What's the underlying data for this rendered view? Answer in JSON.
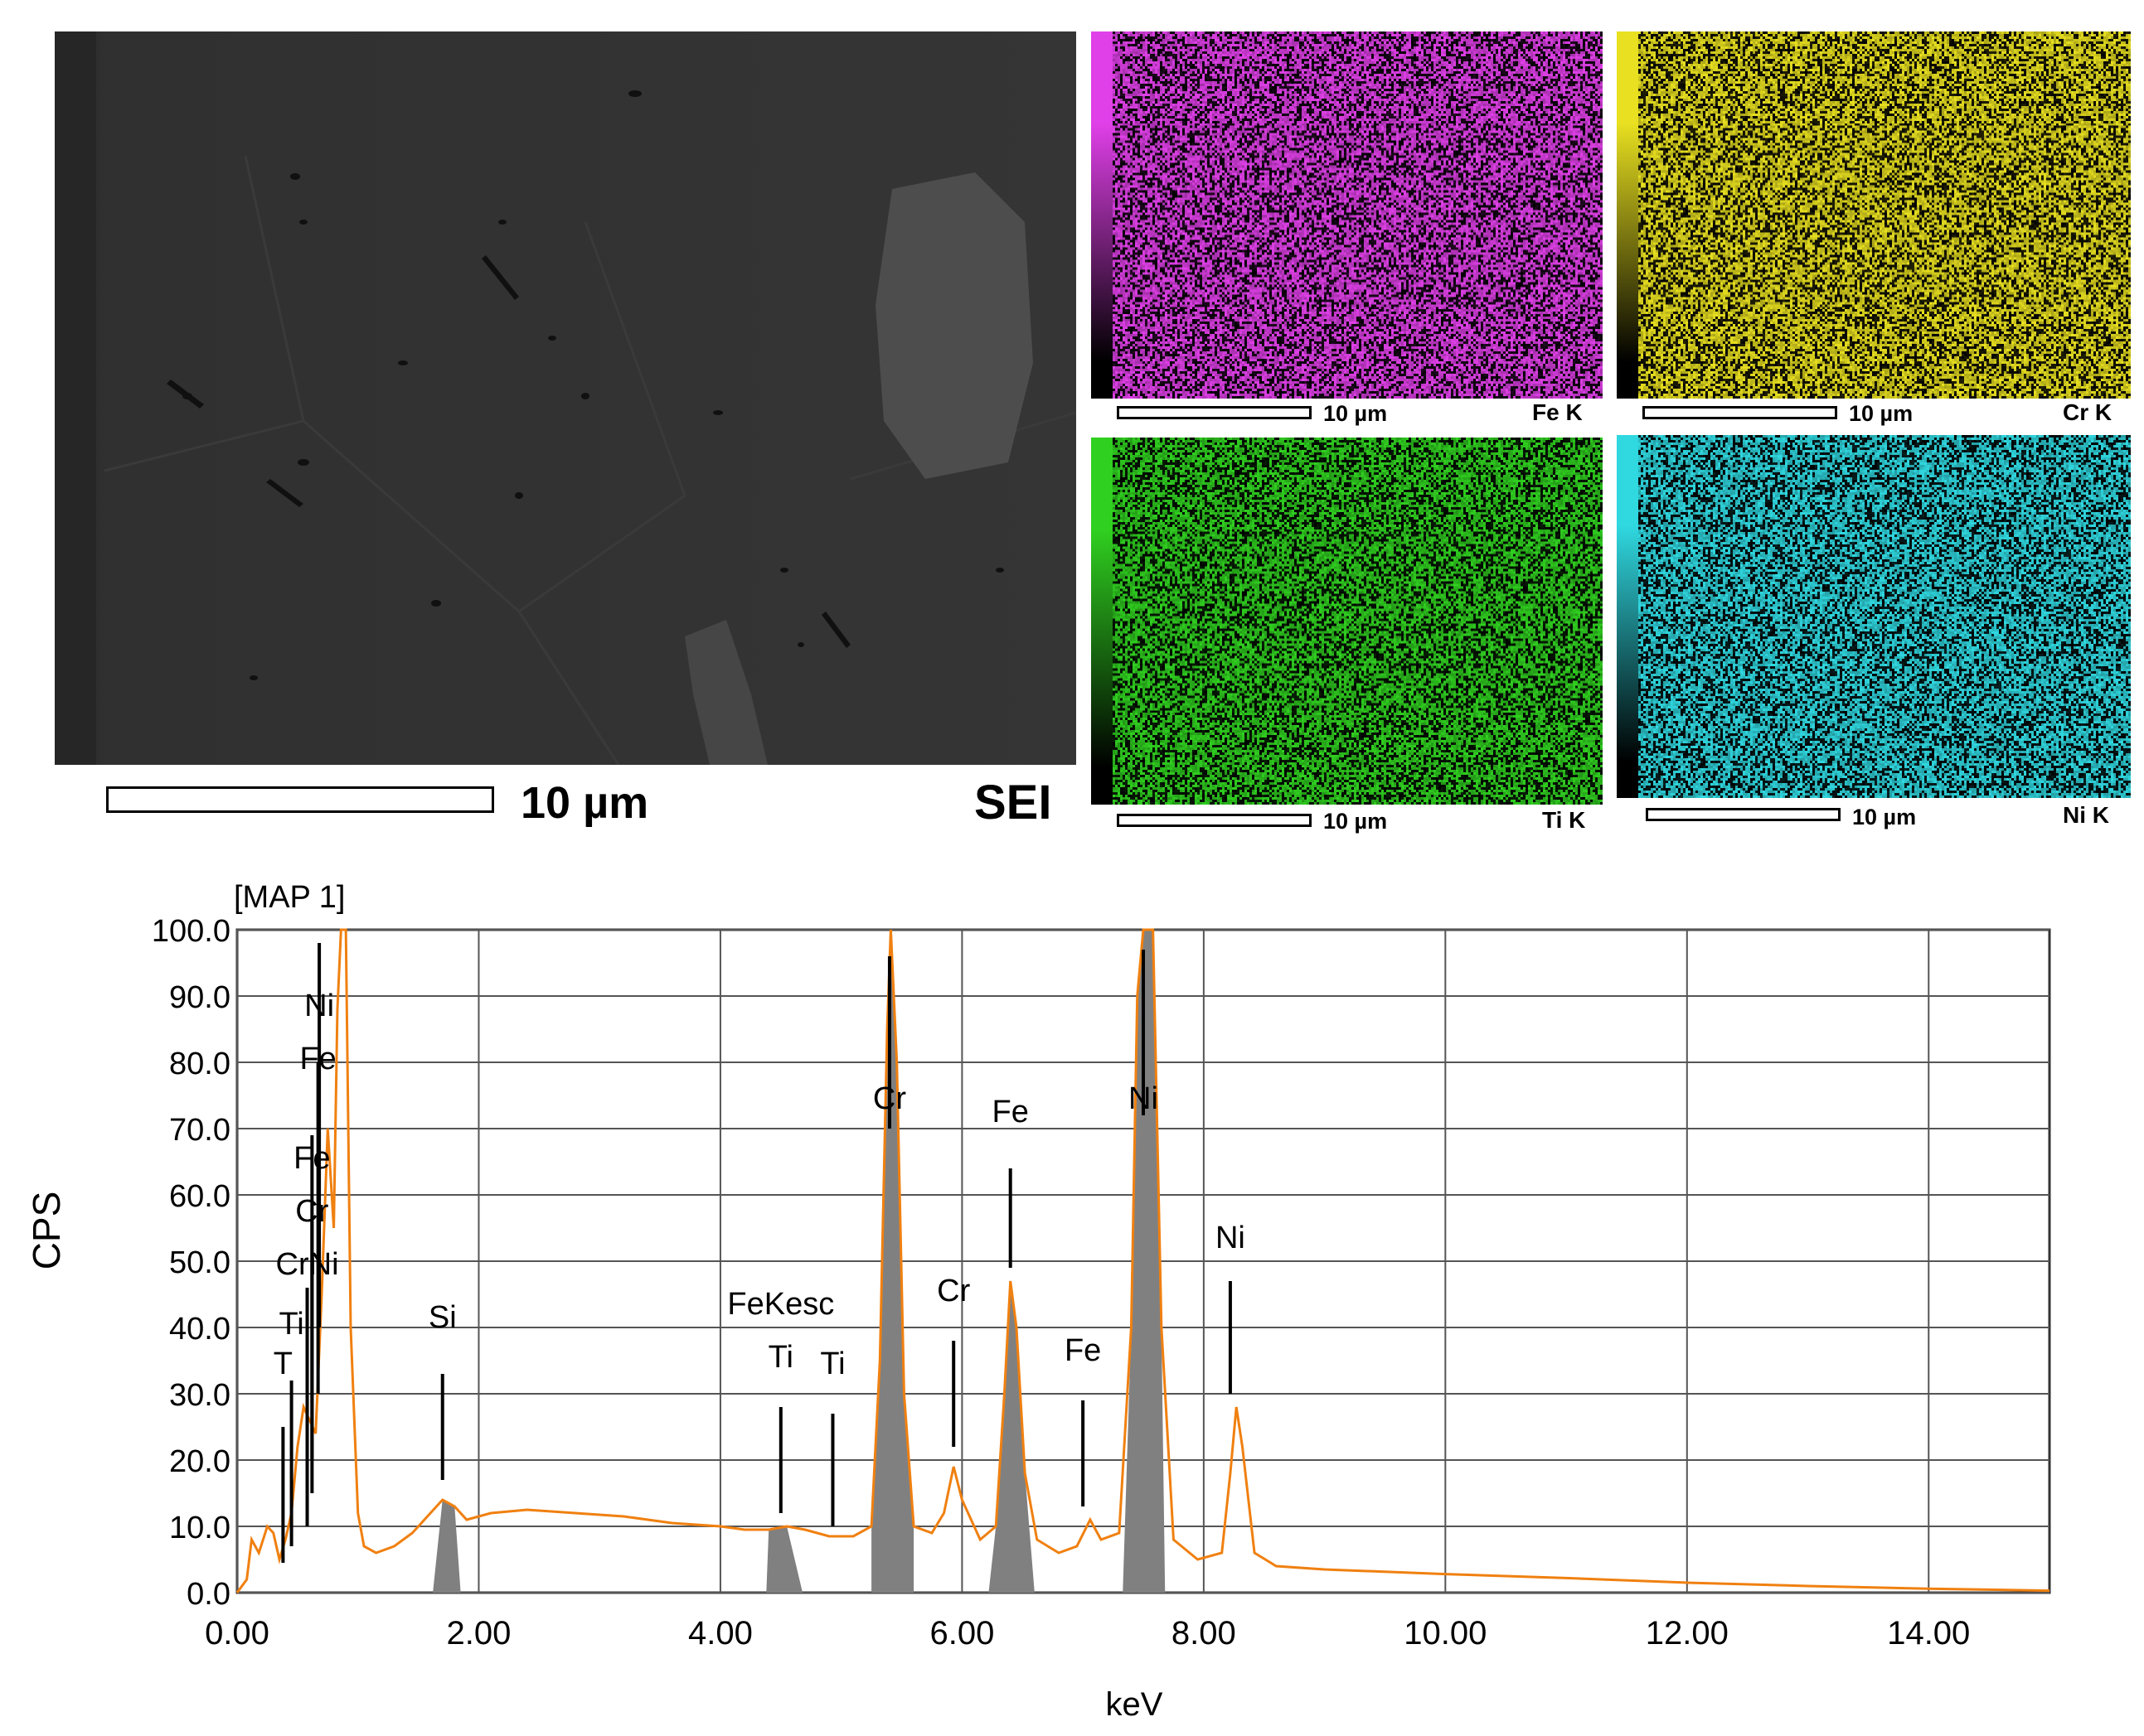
{
  "sei": {
    "scale_label": "10 µm",
    "mode_label": "SEI"
  },
  "maps": [
    {
      "element": "Fe K",
      "scale_label": "10 µm",
      "color": "#e040e8"
    },
    {
      "element": "Cr K",
      "scale_label": "10 µm",
      "color": "#e8e020"
    },
    {
      "element": "Ti K",
      "scale_label": "10 µm",
      "color": "#30d020"
    },
    {
      "element": "Ni K",
      "scale_label": "10 µm",
      "color": "#30d8e0"
    }
  ],
  "chart_data": {
    "type": "line",
    "title": "[MAP 1]",
    "xlabel": "keV",
    "ylabel": "CPS",
    "xlim": [
      0,
      15
    ],
    "ylim": [
      0,
      100
    ],
    "x_ticks": [
      "0.00",
      "2.00",
      "4.00",
      "6.00",
      "8.00",
      "10.00",
      "12.00",
      "14.00"
    ],
    "y_ticks": [
      "0.0",
      "10.0",
      "20.0",
      "30.0",
      "40.0",
      "50.0",
      "60.0",
      "70.0",
      "80.0",
      "90.0",
      "100.0"
    ],
    "grid": true,
    "line_color": "#f08010",
    "fill_color": "#808080",
    "spectrum": [
      [
        0.0,
        0
      ],
      [
        0.08,
        2
      ],
      [
        0.12,
        8
      ],
      [
        0.18,
        6
      ],
      [
        0.25,
        10
      ],
      [
        0.3,
        9
      ],
      [
        0.35,
        5
      ],
      [
        0.4,
        8
      ],
      [
        0.45,
        12
      ],
      [
        0.5,
        22
      ],
      [
        0.55,
        28
      ],
      [
        0.6,
        26
      ],
      [
        0.65,
        24
      ],
      [
        0.7,
        45
      ],
      [
        0.75,
        70
      ],
      [
        0.8,
        55
      ],
      [
        0.83,
        88
      ],
      [
        0.86,
        100
      ],
      [
        0.9,
        100
      ],
      [
        0.94,
        40
      ],
      [
        1.0,
        12
      ],
      [
        1.05,
        7
      ],
      [
        1.15,
        6
      ],
      [
        1.3,
        7
      ],
      [
        1.45,
        9
      ],
      [
        1.6,
        12
      ],
      [
        1.7,
        14
      ],
      [
        1.8,
        13
      ],
      [
        1.9,
        11
      ],
      [
        2.1,
        12
      ],
      [
        2.4,
        12.5
      ],
      [
        2.8,
        12
      ],
      [
        3.2,
        11.5
      ],
      [
        3.6,
        10.5
      ],
      [
        4.0,
        10
      ],
      [
        4.2,
        9.5
      ],
      [
        4.4,
        9.5
      ],
      [
        4.55,
        10
      ],
      [
        4.7,
        9.5
      ],
      [
        4.9,
        8.5
      ],
      [
        5.1,
        8.5
      ],
      [
        5.25,
        10
      ],
      [
        5.32,
        35
      ],
      [
        5.38,
        85
      ],
      [
        5.41,
        100
      ],
      [
        5.46,
        80
      ],
      [
        5.52,
        30
      ],
      [
        5.6,
        10
      ],
      [
        5.75,
        9
      ],
      [
        5.85,
        12
      ],
      [
        5.93,
        19
      ],
      [
        6.0,
        14
      ],
      [
        6.15,
        8
      ],
      [
        6.28,
        10
      ],
      [
        6.35,
        30
      ],
      [
        6.4,
        47
      ],
      [
        6.45,
        40
      ],
      [
        6.52,
        18
      ],
      [
        6.62,
        8
      ],
      [
        6.8,
        6
      ],
      [
        6.95,
        7
      ],
      [
        7.06,
        11
      ],
      [
        7.15,
        8
      ],
      [
        7.3,
        9
      ],
      [
        7.4,
        40
      ],
      [
        7.45,
        90
      ],
      [
        7.5,
        100
      ],
      [
        7.58,
        100
      ],
      [
        7.65,
        40
      ],
      [
        7.75,
        8
      ],
      [
        7.95,
        5
      ],
      [
        8.15,
        6
      ],
      [
        8.22,
        18
      ],
      [
        8.27,
        28
      ],
      [
        8.32,
        22
      ],
      [
        8.42,
        6
      ],
      [
        8.6,
        4
      ],
      [
        9.0,
        3.5
      ],
      [
        10.0,
        2.8
      ],
      [
        11.0,
        2.2
      ],
      [
        12.0,
        1.5
      ],
      [
        13.0,
        1.0
      ],
      [
        14.0,
        0.6
      ],
      [
        15.0,
        0.3
      ]
    ],
    "peak_labels": [
      {
        "text": "T",
        "x": 0.38,
        "y": 33,
        "line_y": [
          4.5,
          25
        ]
      },
      {
        "text": "Ti",
        "x": 0.45,
        "y": 39,
        "line_y": [
          7,
          32
        ]
      },
      {
        "text": "CrNi",
        "x": 0.58,
        "y": 48,
        "line_y": [
          10,
          46
        ]
      },
      {
        "text": "Cr",
        "x": 0.62,
        "y": 56,
        "line_y": [
          15,
          56
        ]
      },
      {
        "text": "Fe",
        "x": 0.62,
        "y": 64,
        "line_y": [
          20,
          69
        ]
      },
      {
        "text": "Fe",
        "x": 0.67,
        "y": 79,
        "line_y": [
          30,
          80
        ]
      },
      {
        "text": "Ni",
        "x": 0.68,
        "y": 87,
        "line_y": [
          40,
          98
        ]
      },
      {
        "text": "Si",
        "x": 1.7,
        "y": 40,
        "line_y": [
          17,
          33
        ]
      },
      {
        "text": "FeKesc",
        "x": 4.5,
        "y": 42,
        "line_y": null
      },
      {
        "text": "Ti",
        "x": 4.5,
        "y": 34,
        "line_y": [
          12,
          28
        ]
      },
      {
        "text": "Ti",
        "x": 4.93,
        "y": 33,
        "line_y": [
          10,
          27
        ]
      },
      {
        "text": "Cr",
        "x": 5.4,
        "y": 73,
        "line_y": [
          70,
          96
        ]
      },
      {
        "text": "Cr",
        "x": 5.93,
        "y": 44,
        "line_y": [
          22,
          38
        ]
      },
      {
        "text": "Fe",
        "x": 6.4,
        "y": 71,
        "line_y": [
          49,
          64
        ]
      },
      {
        "text": "Fe",
        "x": 7.0,
        "y": 35,
        "line_y": [
          13,
          29
        ]
      },
      {
        "text": "Ni",
        "x": 7.5,
        "y": 73,
        "line_y": [
          72,
          97
        ]
      },
      {
        "text": "Ni",
        "x": 8.22,
        "y": 52,
        "line_y": [
          30,
          47
        ]
      }
    ]
  }
}
